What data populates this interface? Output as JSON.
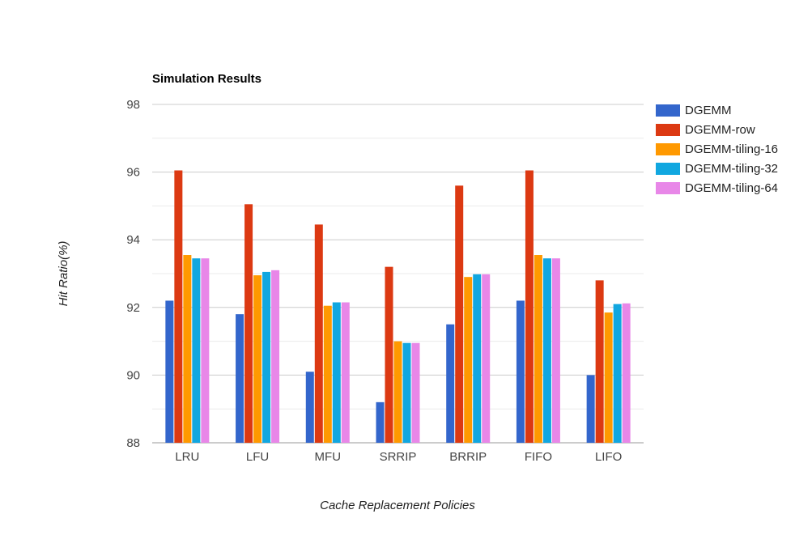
{
  "chart_data": {
    "type": "bar",
    "title": "Simulation Results",
    "xlabel": "Cache Replacement Policies",
    "ylabel": "Hit Ratio(%)",
    "ylim": [
      88,
      98
    ],
    "yticks": [
      88,
      90,
      92,
      94,
      96,
      98
    ],
    "grid": true,
    "legend_position": "right",
    "categories": [
      "LRU",
      "LFU",
      "MFU",
      "SRRIP",
      "BRRIP",
      "FIFO",
      "LIFO"
    ],
    "series": [
      {
        "name": "DGEMM",
        "color": "#3366cc",
        "values": [
          92.2,
          91.8,
          90.1,
          89.2,
          91.5,
          92.2,
          90.0
        ]
      },
      {
        "name": "DGEMM-row",
        "color": "#dc3912",
        "values": [
          96.05,
          95.05,
          94.45,
          93.2,
          95.6,
          96.05,
          92.8
        ]
      },
      {
        "name": "DGEMM-tiling-16",
        "color": "#ff9900",
        "values": [
          93.55,
          92.95,
          92.05,
          91.0,
          92.9,
          93.55,
          91.85
        ]
      },
      {
        "name": "DGEMM-tiling-32",
        "color": "#11a7e0",
        "values": [
          93.45,
          93.05,
          92.15,
          90.95,
          92.98,
          93.45,
          92.1
        ]
      },
      {
        "name": "DGEMM-tiling-64",
        "color": "#e887e8",
        "values": [
          93.45,
          93.1,
          92.15,
          90.95,
          92.98,
          93.45,
          92.12
        ]
      }
    ]
  }
}
